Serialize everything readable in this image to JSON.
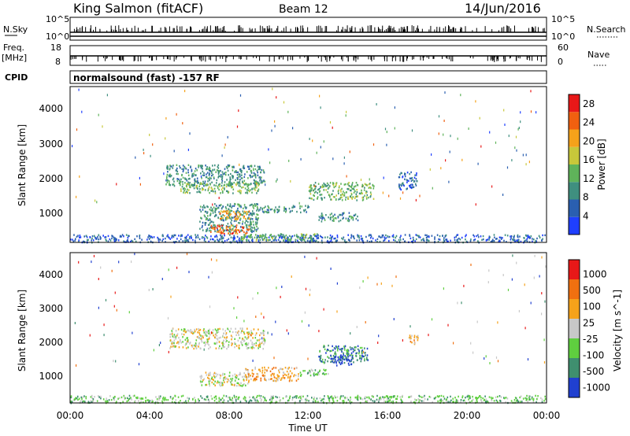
{
  "header": {
    "title": "King Salmon (fitACF)",
    "beam": "Beam 12",
    "date": "14/Jun/2016"
  },
  "status_panels": {
    "nsky_label": "N.Sky",
    "nsky_ticks": [
      "10^5",
      "10^0"
    ],
    "nsearch_label": "N.Search",
    "nsearch_ticks": [
      "10^5",
      "10^0"
    ],
    "freq_label": "Freq.",
    "freq_unit": "[MHz]",
    "freq_ticks": [
      "18",
      "8"
    ],
    "nave_label": "Nave",
    "nave_ticks": [
      "60",
      "0"
    ],
    "cpid_label": "CPID",
    "cpid_value": "normalsound (fast)  -157  RF"
  },
  "chart_data": [
    {
      "type": "heatmap",
      "name": "power",
      "ylabel": "Slant Range [km]",
      "ylim": [
        180,
        4600
      ],
      "yticks": [
        "1000",
        "2000",
        "3000",
        "4000"
      ],
      "x_range_hours": [
        0,
        24
      ],
      "colorbar_label": "Power [dB]",
      "colorbar_ticks": [
        "4",
        "8",
        "12",
        "16",
        "20",
        "24",
        "28"
      ],
      "colorbar_range": [
        0,
        30
      ],
      "colors": [
        "#1f3fff",
        "#2a5fb0",
        "#3f8f7f",
        "#5fb35a",
        "#c8c83a",
        "#f5a21a",
        "#f06010",
        "#e81818"
      ],
      "regions": [
        {
          "t": [
            4.8,
            9.8
          ],
          "r": [
            1800,
            2400
          ],
          "level": 2
        },
        {
          "t": [
            5.5,
            9.5
          ],
          "r": [
            1600,
            1900
          ],
          "level": 3
        },
        {
          "t": [
            6.5,
            9.5
          ],
          "r": [
            500,
            1300
          ],
          "level": 2
        },
        {
          "t": [
            7.0,
            9.0
          ],
          "r": [
            450,
            700
          ],
          "level": 6
        },
        {
          "t": [
            7.5,
            9.0
          ],
          "r": [
            850,
            1100
          ],
          "level": 5
        },
        {
          "t": [
            9.5,
            12.0
          ],
          "r": [
            1050,
            1250
          ],
          "level": 2
        },
        {
          "t": [
            12.0,
            15.3
          ],
          "r": [
            1400,
            1900
          ],
          "level": 3
        },
        {
          "t": [
            12.5,
            14.5
          ],
          "r": [
            800,
            1050
          ],
          "level": 2
        },
        {
          "t": [
            16.5,
            17.5
          ],
          "r": [
            1700,
            2200
          ],
          "level": 1
        },
        {
          "t": [
            0.0,
            24.0
          ],
          "r": [
            200,
            420
          ],
          "level": 1
        },
        {
          "t": [
            8.5,
            12.5
          ],
          "r": [
            250,
            450
          ],
          "level": 3
        }
      ]
    },
    {
      "type": "heatmap",
      "name": "velocity",
      "ylabel": "Slant Range [km]",
      "ylim": [
        180,
        4600
      ],
      "yticks": [
        "1000",
        "2000",
        "3000",
        "4000"
      ],
      "xlabel": "Time UT",
      "xticks": [
        "00:00",
        "04:00",
        "08:00",
        "12:00",
        "16:00",
        "20:00",
        "00:00"
      ],
      "x_range_hours": [
        0,
        24
      ],
      "colorbar_label": "Velocity [m s^-1]",
      "colorbar_ticks": [
        "1000",
        "500",
        "100",
        "25",
        "-25",
        "-100",
        "-500",
        "-1000"
      ],
      "colors": [
        "#2040d0",
        "#3f8f6f",
        "#5fcf3f",
        "#c8c8c8",
        "#f5a21a",
        "#f07010",
        "#e81818"
      ],
      "regions": [
        {
          "t": [
            5.0,
            9.8
          ],
          "r": [
            1800,
            2400
          ],
          "level": 3
        },
        {
          "t": [
            6.5,
            9.0
          ],
          "r": [
            700,
            1100
          ],
          "level": 3
        },
        {
          "t": [
            8.8,
            11.5
          ],
          "r": [
            850,
            1250
          ],
          "level": 4
        },
        {
          "t": [
            11.5,
            13.0
          ],
          "r": [
            1000,
            1200
          ],
          "level": 2
        },
        {
          "t": [
            12.5,
            15.0
          ],
          "r": [
            1400,
            1900
          ],
          "level": 1
        },
        {
          "t": [
            13.0,
            14.2
          ],
          "r": [
            1300,
            1600
          ],
          "level": 0
        },
        {
          "t": [
            0.0,
            24.0
          ],
          "r": [
            200,
            420
          ],
          "level": 2
        },
        {
          "t": [
            17.0,
            17.5
          ],
          "r": [
            1900,
            2200
          ],
          "level": 4
        }
      ]
    }
  ]
}
